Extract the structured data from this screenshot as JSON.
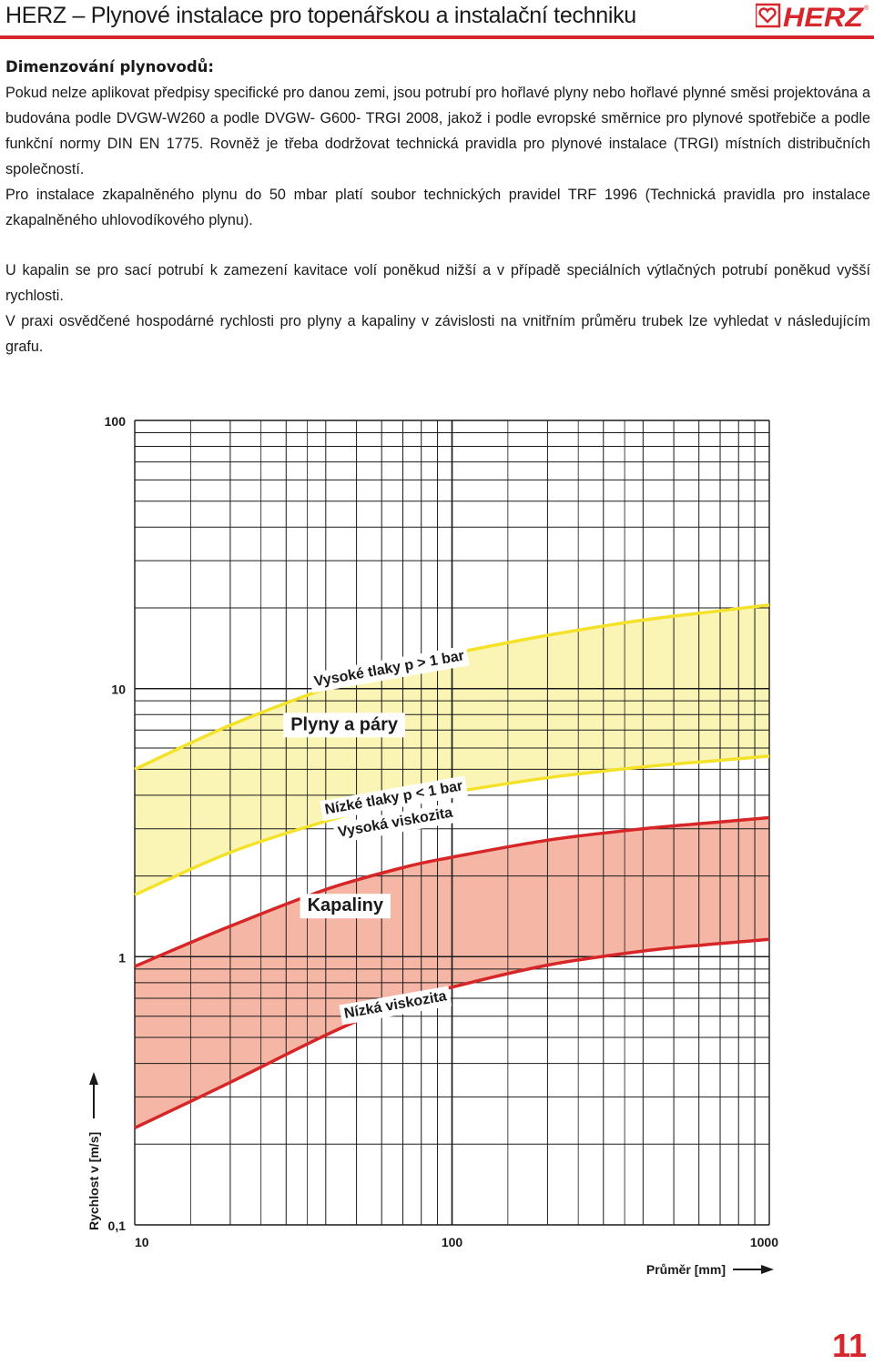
{
  "header": {
    "title": "HERZ – Plynové instalace pro topenářskou a instalační techniku",
    "logo_text": "HERZ",
    "brand_color": "#d7262c",
    "logo_icon": "heart-icon"
  },
  "section": {
    "heading": "Dimenzování plynovodů:",
    "paragraphs": [
      "Pokud nelze aplikovat předpisy specifické pro danou zemi, jsou potrubí pro hořlavé plyny nebo hořlavé plynné směsi projektována a budována podle DVGW-W260 a podle DVGW- G600- TRGI 2008, jakož i podle evropské směrnice pro plynové spotřebiče a podle funkční normy DIN EN 1775. Rovněž je třeba dodržovat technická pravidla pro plynové instalace (TRGI) místních distribučních společností.",
      "Pro instalace zkapalněného plynu do 50 mbar platí soubor technických pravidel TRF 1996 (Technická pravidla pro instalace zkapalněného uhlovodíkového plynu).",
      "U kapalin se pro sací potrubí k zamezení kavitace volí poněkud nižší a v případě speciálních výtlačných potrubí poněkud vyšší rychlosti.",
      "V praxi osvědčené hospodárné rychlosti pro plyny a kapaliny v závislosti na vnitřním průměru trubek lze vyhledat v následujícím grafu."
    ]
  },
  "chart_data": {
    "type": "area",
    "x_scale": "log",
    "y_scale": "log",
    "xlim": [
      10,
      1000
    ],
    "ylim": [
      0.1,
      100
    ],
    "x_ticks": [
      {
        "value": 10,
        "label": "10"
      },
      {
        "value": 100,
        "label": "100"
      },
      {
        "value": 1000,
        "label": "1000"
      }
    ],
    "y_ticks": [
      {
        "value": 0.1,
        "label": "0,1"
      },
      {
        "value": 1,
        "label": "1"
      },
      {
        "value": 10,
        "label": "10"
      },
      {
        "value": 100,
        "label": "100"
      }
    ],
    "xlabel": "Průměr [mm]",
    "ylabel": "Rychlost v [m/s]",
    "grid": true,
    "bands": [
      {
        "name": "Plyny a páry",
        "fill": "#fbf5b5",
        "line_color": "#f4e22a",
        "upper": {
          "x": [
            10,
            20,
            40,
            70,
            100,
            200,
            400,
            700,
            1000
          ],
          "y": [
            5.0,
            7.3,
            10.0,
            12.3,
            13.5,
            15.8,
            18.0,
            19.5,
            20.5
          ]
        },
        "lower": {
          "x": [
            10,
            20,
            40,
            70,
            100,
            200,
            400,
            700,
            1000
          ],
          "y": [
            1.7,
            2.45,
            3.2,
            3.8,
            4.1,
            4.65,
            5.1,
            5.4,
            5.6
          ]
        }
      },
      {
        "name": "Kapaliny",
        "fill": "#f6b6a5",
        "line_color": "#d62628",
        "upper": {
          "x": [
            10,
            20,
            40,
            70,
            100,
            200,
            400,
            700,
            1000
          ],
          "y": [
            0.92,
            1.3,
            1.78,
            2.15,
            2.35,
            2.72,
            3.0,
            3.18,
            3.3
          ]
        },
        "lower": {
          "x": [
            10,
            20,
            40,
            70,
            100,
            200,
            400,
            700,
            1000
          ],
          "y": [
            0.23,
            0.34,
            0.51,
            0.68,
            0.77,
            0.93,
            1.05,
            1.12,
            1.16
          ]
        }
      }
    ],
    "annotations": [
      {
        "text": "Vysoké tlaky p > 1 bar",
        "x": 37,
        "y": 10.2,
        "rotate": -10,
        "style": "plain"
      },
      {
        "text": "Plyny a páry",
        "x": 31,
        "y": 7.0,
        "rotate": 0,
        "style": "boxed"
      },
      {
        "text": "Nízké tlaky p < 1 bar",
        "x": 40,
        "y": 3.4,
        "rotate": -10,
        "style": "plain"
      },
      {
        "text": "Vysoká viskozita",
        "x": 44,
        "y": 2.8,
        "rotate": -10,
        "style": "plain"
      },
      {
        "text": "Kapaliny",
        "x": 35,
        "y": 1.48,
        "rotate": 0,
        "style": "boxed"
      },
      {
        "text": "Nízká viskozita",
        "x": 46,
        "y": 0.59,
        "rotate": -10,
        "style": "plain"
      }
    ]
  },
  "footer": {
    "page_number": "11"
  }
}
